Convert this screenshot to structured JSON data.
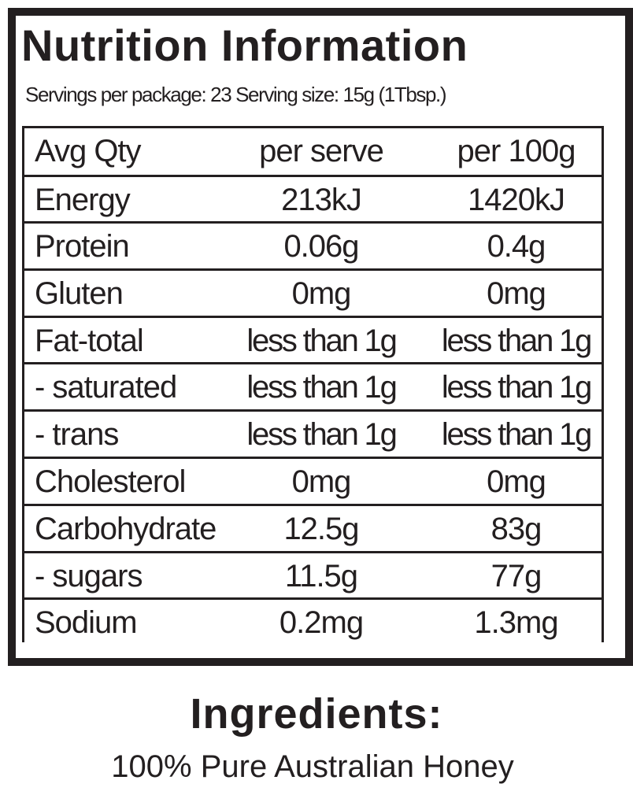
{
  "nutrition": {
    "title": "Nutrition Information",
    "servings_line": "Servings per package: 23 Serving size: 15g (1Tbsp.)",
    "header": {
      "label": "Avg Qty",
      "per_serve": "per serve",
      "per_100g": "per 100g"
    },
    "rows": [
      {
        "label": "Energy",
        "per_serve": "213kJ",
        "per_100g": "1420kJ"
      },
      {
        "label": "Protein",
        "per_serve": "0.06g",
        "per_100g": "0.4g"
      },
      {
        "label": "Gluten",
        "per_serve": "0mg",
        "per_100g": "0mg"
      },
      {
        "label": "Fat-total",
        "per_serve": "less than 1g",
        "per_100g": "less than 1g"
      },
      {
        "label": "- saturated",
        "per_serve": "less than 1g",
        "per_100g": "less than 1g"
      },
      {
        "label": "- trans",
        "per_serve": "less than 1g",
        "per_100g": "less than 1g"
      },
      {
        "label": "Cholesterol",
        "per_serve": "0mg",
        "per_100g": "0mg"
      },
      {
        "label": "Carbohydrate",
        "per_serve": "12.5g",
        "per_100g": "83g"
      },
      {
        "label": "- sugars",
        "per_serve": "11.5g",
        "per_100g": "77g"
      },
      {
        "label": "Sodium",
        "per_serve": "0.2mg",
        "per_100g": "1.3mg"
      }
    ]
  },
  "ingredients": {
    "title": "Ingredients:",
    "text": "100% Pure Australian Honey"
  },
  "colors": {
    "ink": "#231f20",
    "background": "#ffffff"
  }
}
